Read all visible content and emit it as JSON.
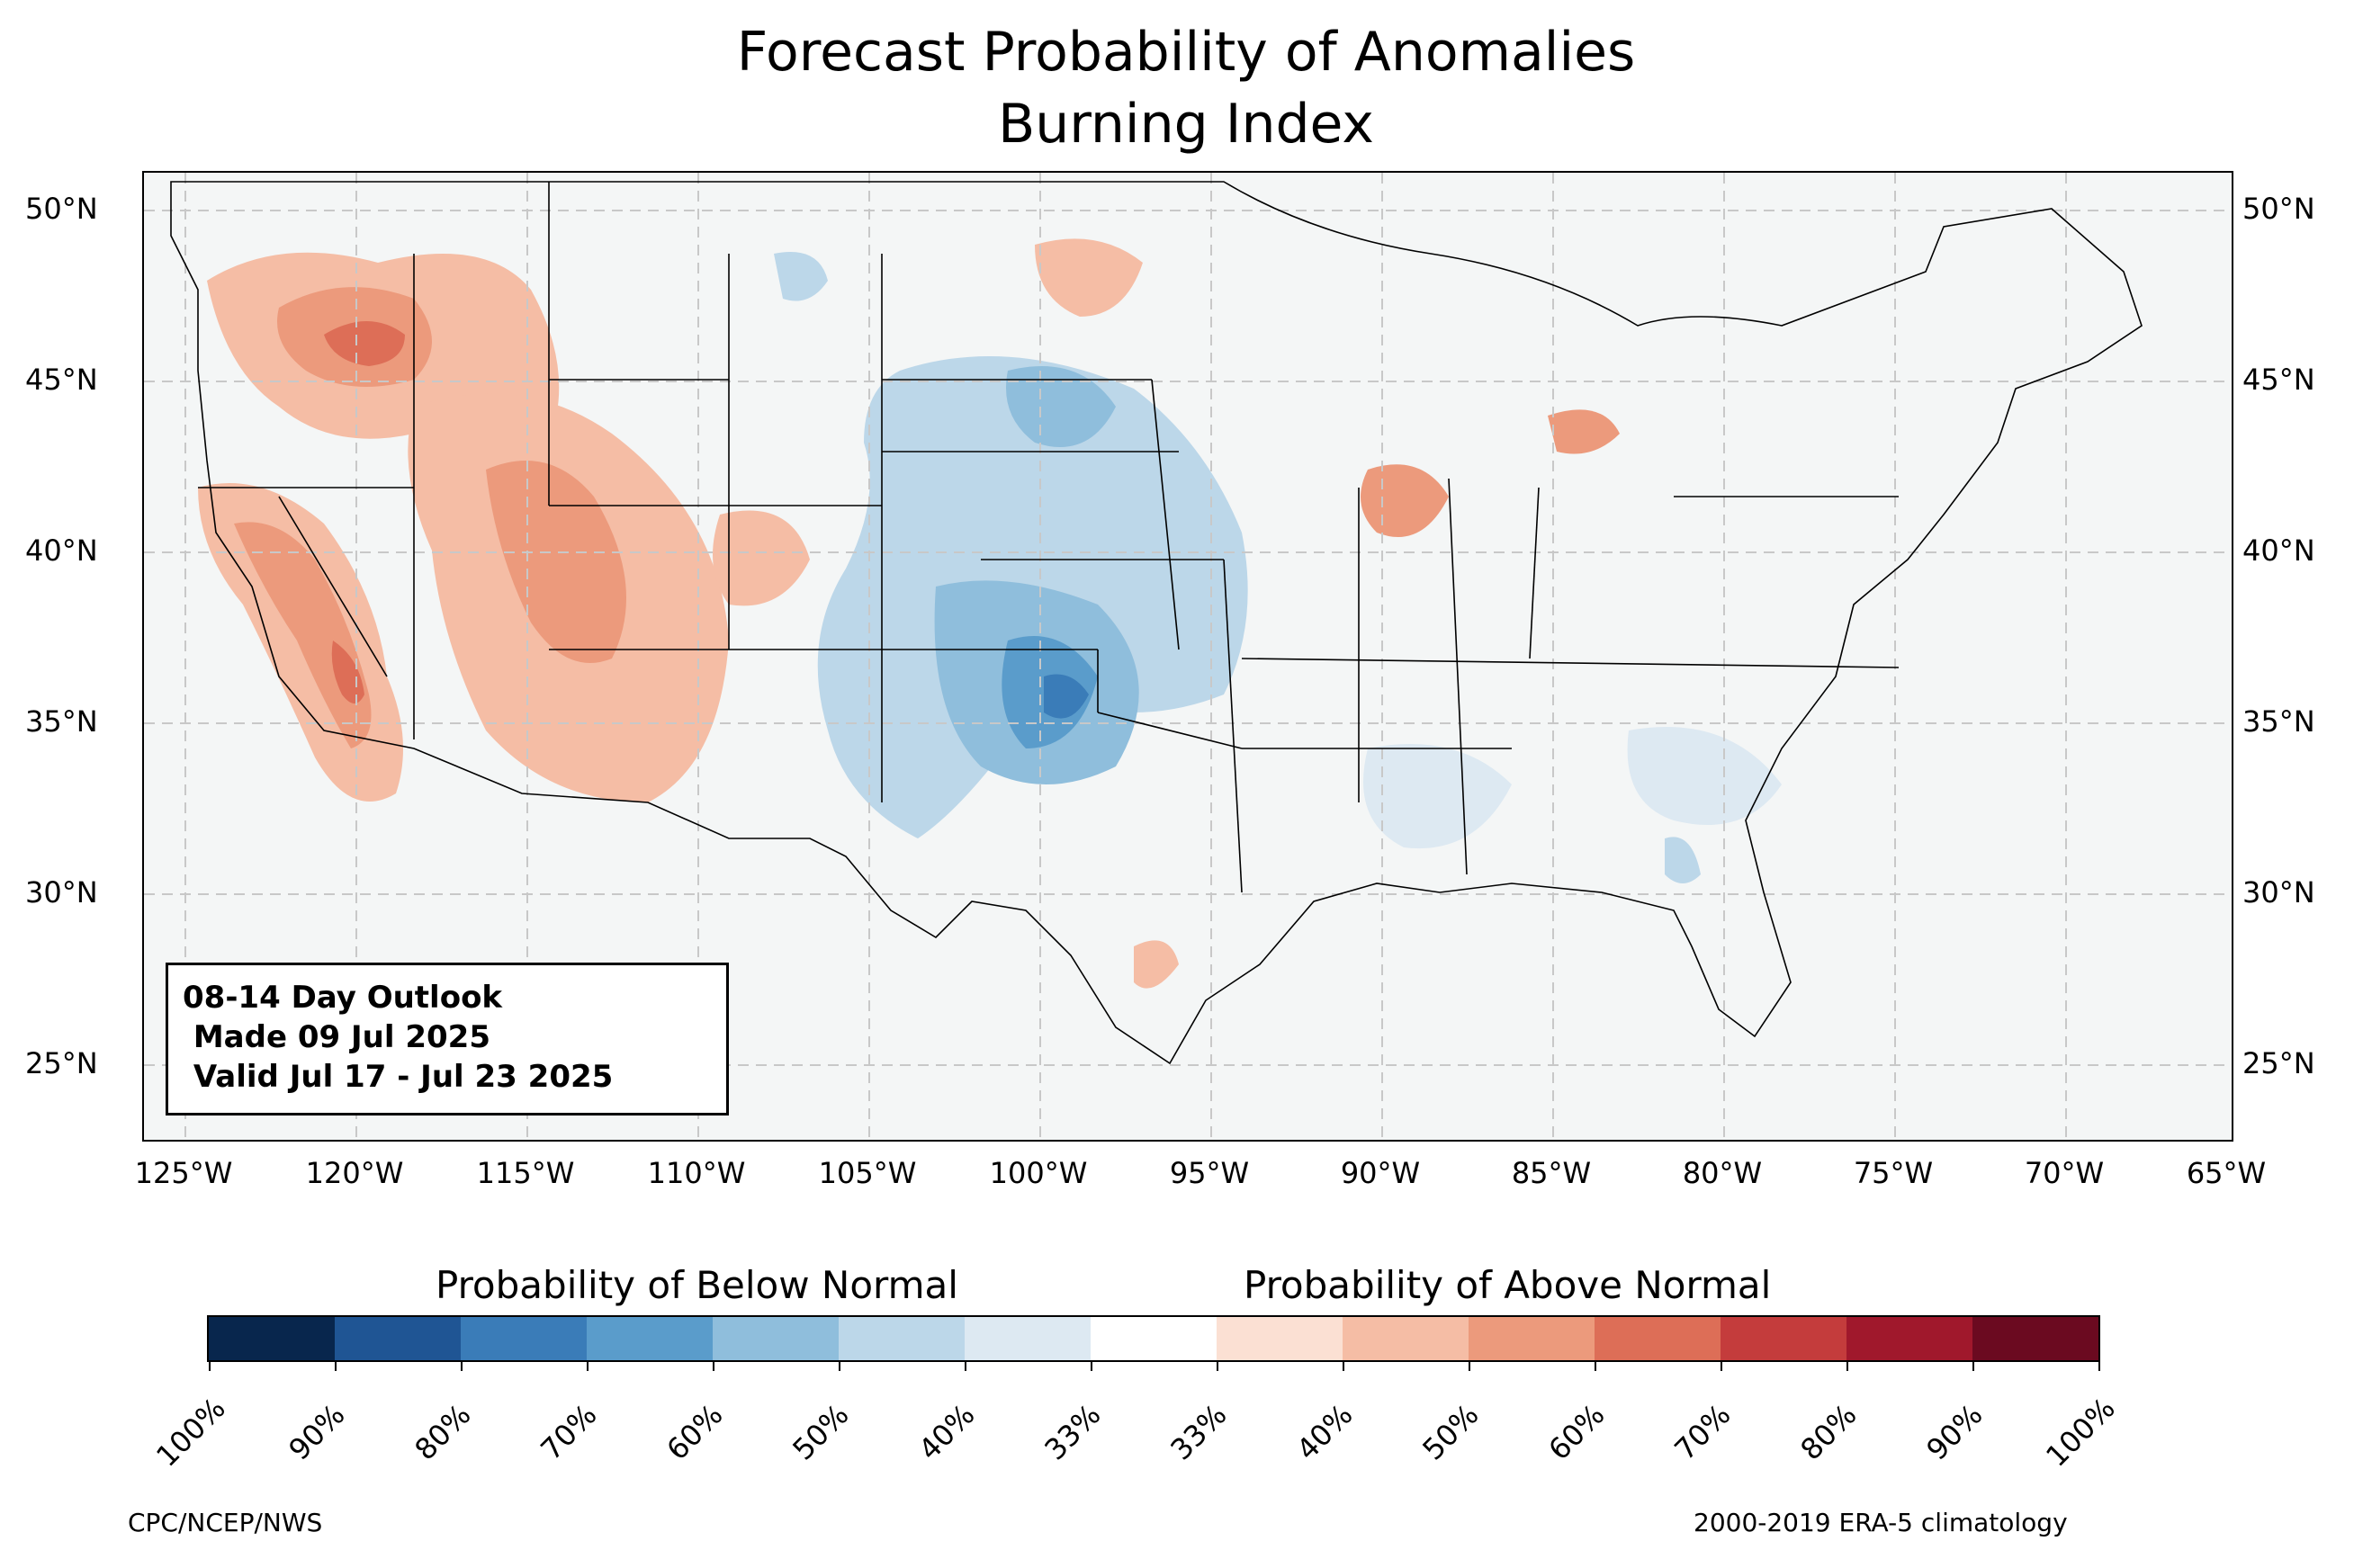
{
  "title": {
    "line1": "Forecast Probability of Anomalies",
    "line2": "Burning Index"
  },
  "map": {
    "background_color": "#f4f6f6",
    "latitude_labels": [
      "50°N",
      "45°N",
      "40°N",
      "35°N",
      "30°N",
      "25°N"
    ],
    "longitude_labels": [
      "125°W",
      "120°W",
      "115°W",
      "110°W",
      "105°W",
      "100°W",
      "95°W",
      "90°W",
      "85°W",
      "80°W",
      "75°W",
      "70°W",
      "65°W"
    ]
  },
  "info_box": {
    "line1": "08-14 Day Outlook",
    "line2": " Made 09 Jul 2025",
    "line3": " Valid Jul 17 - Jul 23 2025"
  },
  "legend": {
    "below_heading": "Probability of Below Normal",
    "above_heading": "Probability of Above Normal",
    "tick_labels": [
      "100%",
      "90%",
      "80%",
      "70%",
      "60%",
      "50%",
      "40%",
      "33%",
      "33%",
      "40%",
      "50%",
      "60%",
      "70%",
      "80%",
      "90%",
      "100%"
    ],
    "colors": [
      "#08264d",
      "#1f5594",
      "#3a7cb8",
      "#5a9ccb",
      "#8fbedc",
      "#bcd7e9",
      "#dde9f2",
      "#ffffff",
      "#fbe0d3",
      "#f5bda5",
      "#ec9a7c",
      "#dd6e57",
      "#c43c3c",
      "#a0182c",
      "#6b0a20"
    ]
  },
  "footer": {
    "left": "CPC/NCEP/NWS",
    "right": "2000-2019 ERA-5 climatology"
  }
}
